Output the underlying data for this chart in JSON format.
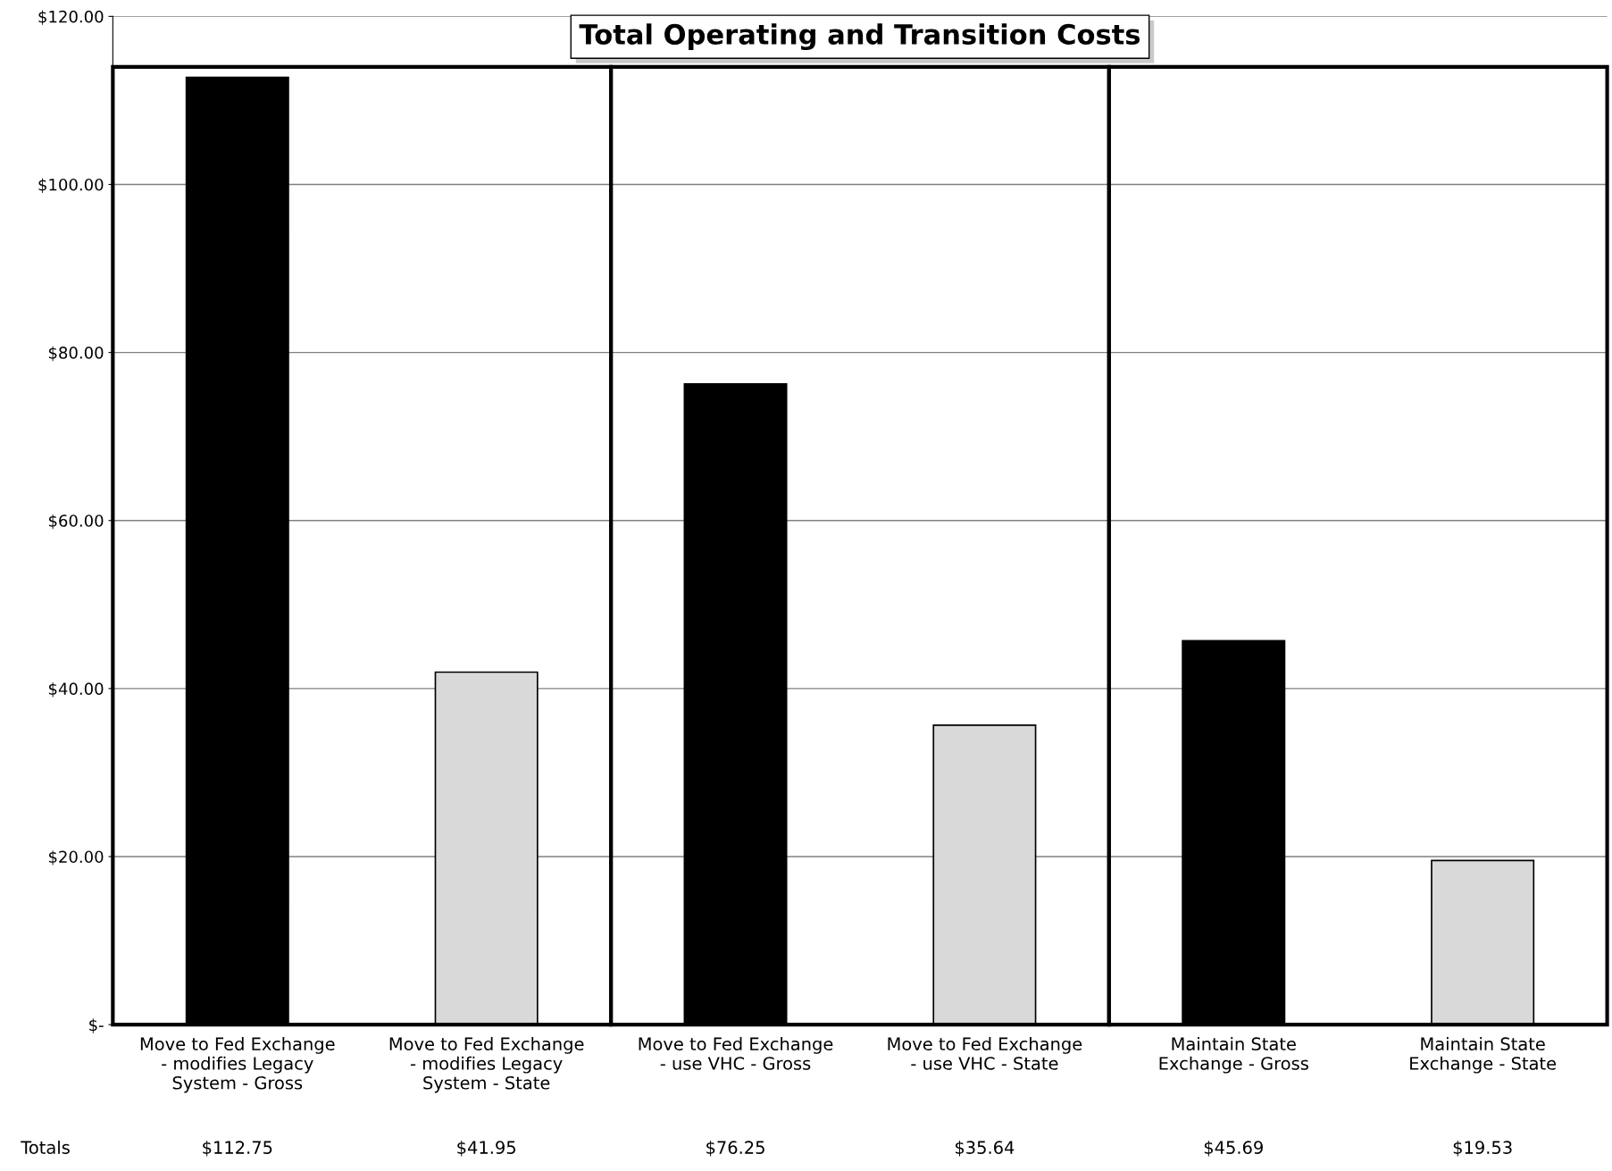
{
  "chart_data": {
    "type": "bar",
    "title": "Total Operating and Transition Costs",
    "categories": [
      "Move to Fed Exchange\n- modifies Legacy\nSystem - Gross",
      "Move to Fed Exchange\n- modifies Legacy\nSystem - State",
      "Move to Fed Exchange\n- use VHC - Gross",
      "Move to Fed Exchange\n- use VHC - State",
      "Maintain State\nExchange - Gross",
      "Maintain State\nExchange - State"
    ],
    "values": [
      112.75,
      41.95,
      76.25,
      35.64,
      45.69,
      19.53
    ],
    "colors": [
      "#000000",
      "#d9d9d9",
      "#000000",
      "#d9d9d9",
      "#000000",
      "#d9d9d9"
    ],
    "value_labels": [
      "$112.75",
      "$41.95",
      "$76.25",
      "$35.64",
      "$45.69",
      "$19.53"
    ],
    "annotations": [
      "Totals"
    ],
    "ylim": [
      0,
      120
    ],
    "yticks": [
      {
        "value": 0,
        "label": "$-"
      },
      {
        "value": 20,
        "label": "$20.00"
      },
      {
        "value": 40,
        "label": "$40.00"
      },
      {
        "value": 60,
        "label": "$60.00"
      },
      {
        "value": 80,
        "label": "$80.00"
      },
      {
        "value": 100,
        "label": "$100.00"
      },
      {
        "value": 120,
        "label": "$120.00"
      }
    ],
    "grid": "y"
  }
}
